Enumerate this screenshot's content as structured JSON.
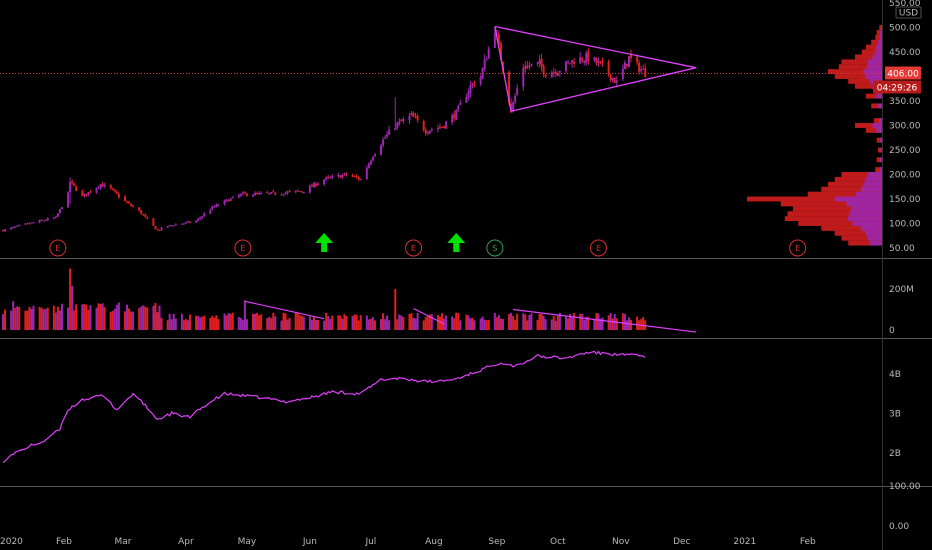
{
  "colors": {
    "background": "#000000",
    "up": "#9c27b0",
    "down": "#e0201f",
    "trendline": "#e040fb",
    "arrow": "#00e000",
    "earnings": "#d32f2f",
    "split": "#2e9e4e",
    "current_price": "#e53935",
    "pane_divider": "#555555"
  },
  "currency_label": "USD",
  "current_price_tag": "406.00",
  "countdown_tag": "04:29:26",
  "markers": {
    "earnings_label": "E",
    "split_label": "S",
    "earnings_dates": [
      "2020-01-29",
      "2020-04-29",
      "2020-07-22",
      "2020-10-21",
      "2021-01-27"
    ],
    "split_dates": [
      "2020-08-31"
    ],
    "up_arrow_dates": [
      "2020-06-08",
      "2020-08-12"
    ]
  },
  "chart_data": [
    {
      "type": "candlestick",
      "pane": "price",
      "ylim": [
        40,
        550
      ],
      "y_ticks": [
        50,
        100,
        150,
        200,
        250,
        300,
        350,
        400,
        450,
        500,
        550
      ],
      "y_tick_labels": [
        "50.00",
        "100.00",
        "150.00",
        "200.00",
        "250.00",
        "300.00",
        "350.00",
        "400.00",
        "450.00",
        "500.00",
        "550.00"
      ],
      "x_range": [
        "2020-01-01",
        "2021-02-28"
      ],
      "x_tick_labels": [
        "2020",
        "Feb",
        "Mar",
        "Apr",
        "May",
        "Jun",
        "Jul",
        "Aug",
        "Sep",
        "Oct",
        "Nov",
        "Dec",
        "2021",
        "Feb"
      ],
      "x_tick_dates": [
        "2020-01-01",
        "2020-02-01",
        "2020-03-01",
        "2020-04-01",
        "2020-05-01",
        "2020-06-01",
        "2020-07-01",
        "2020-08-01",
        "2020-09-01",
        "2020-10-01",
        "2020-11-01",
        "2020-12-01",
        "2021-01-01",
        "2021-02-01"
      ],
      "close_path": [
        [
          "2020-01-02",
          86
        ],
        [
          "2020-01-10",
          95
        ],
        [
          "2020-01-20",
          105
        ],
        [
          "2020-01-28",
          112
        ],
        [
          "2020-02-03",
          160
        ],
        [
          "2020-02-04",
          185
        ],
        [
          "2020-02-10",
          155
        ],
        [
          "2020-02-19",
          180
        ],
        [
          "2020-02-24",
          170
        ],
        [
          "2020-03-02",
          145
        ],
        [
          "2020-03-09",
          125
        ],
        [
          "2020-03-18",
          86
        ],
        [
          "2020-03-23",
          95
        ],
        [
          "2020-03-30",
          100
        ],
        [
          "2020-04-06",
          105
        ],
        [
          "2020-04-13",
          130
        ],
        [
          "2020-04-20",
          145
        ],
        [
          "2020-04-29",
          160
        ],
        [
          "2020-05-08",
          160
        ],
        [
          "2020-05-18",
          162
        ],
        [
          "2020-05-29",
          167
        ],
        [
          "2020-06-08",
          190
        ],
        [
          "2020-06-19",
          200
        ],
        [
          "2020-06-26",
          190
        ],
        [
          "2020-07-02",
          240
        ],
        [
          "2020-07-08",
          276
        ],
        [
          "2020-07-13",
          300
        ],
        [
          "2020-07-21",
          320
        ],
        [
          "2020-07-28",
          290
        ],
        [
          "2020-08-05",
          298
        ],
        [
          "2020-08-12",
          325
        ],
        [
          "2020-08-19",
          380
        ],
        [
          "2020-08-24",
          400
        ],
        [
          "2020-08-31",
          498
        ],
        [
          "2020-09-04",
          418
        ],
        [
          "2020-09-08",
          330
        ],
        [
          "2020-09-14",
          420
        ],
        [
          "2020-09-22",
          425
        ],
        [
          "2020-09-25",
          407
        ],
        [
          "2020-10-02",
          415
        ],
        [
          "2020-10-09",
          434
        ],
        [
          "2020-10-16",
          439
        ],
        [
          "2020-10-23",
          420
        ],
        [
          "2020-10-30",
          388
        ],
        [
          "2020-11-05",
          438
        ],
        [
          "2020-11-09",
          421
        ],
        [
          "2020-11-13",
          408
        ]
      ],
      "wick_extremes": {
        "2020-02-04": {
          "high": 194,
          "low": 140
        },
        "2020-07-13": {
          "high": 358,
          "low": 294
        },
        "2020-08-31": {
          "high": 502,
          "low": 470
        },
        "2020-09-08": {
          "high": 355,
          "low": 329
        }
      },
      "triangle_pattern": {
        "upper": [
          [
            "2020-08-31",
            502
          ],
          [
            "2020-12-08",
            418
          ]
        ],
        "lower": [
          [
            "2020-09-08",
            329
          ],
          [
            "2020-12-08",
            418
          ]
        ]
      },
      "volume_profile": [
        [
          60,
          0.25
        ],
        [
          70,
          0.3
        ],
        [
          80,
          0.35
        ],
        [
          90,
          0.45
        ],
        [
          100,
          0.62
        ],
        [
          110,
          0.72
        ],
        [
          120,
          0.7
        ],
        [
          130,
          0.66
        ],
        [
          140,
          0.75
        ],
        [
          150,
          1.0
        ],
        [
          160,
          0.55
        ],
        [
          170,
          0.45
        ],
        [
          180,
          0.4
        ],
        [
          190,
          0.35
        ],
        [
          200,
          0.3
        ],
        [
          210,
          0.05
        ],
        [
          230,
          0.04
        ],
        [
          250,
          0.03
        ],
        [
          270,
          0.04
        ],
        [
          290,
          0.12
        ],
        [
          300,
          0.2
        ],
        [
          310,
          0.06
        ],
        [
          340,
          0.08
        ],
        [
          360,
          0.12
        ],
        [
          380,
          0.2
        ],
        [
          390,
          0.25
        ],
        [
          400,
          0.35
        ],
        [
          410,
          0.4
        ],
        [
          420,
          0.32
        ],
        [
          430,
          0.3
        ],
        [
          440,
          0.2
        ],
        [
          450,
          0.15
        ],
        [
          460,
          0.12
        ],
        [
          470,
          0.08
        ],
        [
          480,
          0.05
        ],
        [
          490,
          0.04
        ],
        [
          500,
          0.02
        ]
      ]
    },
    {
      "type": "bar",
      "pane": "volume",
      "y_ticks": [
        0,
        200
      ],
      "y_tick_labels": [
        "0",
        "200M"
      ],
      "ylim": [
        0,
        300
      ],
      "peak_values": [
        [
          "2020-02-04",
          300
        ],
        [
          "2020-02-05",
          215
        ],
        [
          "2020-07-13",
          200
        ],
        [
          "2020-04-30",
          145
        ]
      ],
      "trendlines": [
        [
          [
            "2020-04-30",
            140
          ],
          [
            "2020-06-08",
            55
          ]
        ],
        [
          [
            "2020-07-22",
            105
          ],
          [
            "2020-08-06",
            30
          ]
        ],
        [
          [
            "2020-09-09",
            100
          ],
          [
            "2020-12-08",
            -10
          ]
        ]
      ]
    },
    {
      "type": "line",
      "pane": "indicator",
      "y_ticks": [
        2,
        3,
        4
      ],
      "y_tick_labels": [
        "2B",
        "3B",
        "4B"
      ],
      "ylim": [
        1.25,
        4.75
      ],
      "points": [
        [
          "2020-01-02",
          1.8
        ],
        [
          "2020-01-08",
          2.0
        ],
        [
          "2020-01-14",
          2.15
        ],
        [
          "2020-01-22",
          2.3
        ],
        [
          "2020-01-30",
          2.6
        ],
        [
          "2020-02-03",
          3.1
        ],
        [
          "2020-02-10",
          3.35
        ],
        [
          "2020-02-20",
          3.45
        ],
        [
          "2020-02-27",
          3.1
        ],
        [
          "2020-03-06",
          3.5
        ],
        [
          "2020-03-12",
          3.2
        ],
        [
          "2020-03-18",
          2.85
        ],
        [
          "2020-03-25",
          3.0
        ],
        [
          "2020-04-03",
          2.9
        ],
        [
          "2020-04-10",
          3.2
        ],
        [
          "2020-04-20",
          3.5
        ],
        [
          "2020-04-29",
          3.45
        ],
        [
          "2020-05-08",
          3.4
        ],
        [
          "2020-05-20",
          3.3
        ],
        [
          "2020-06-01",
          3.4
        ],
        [
          "2020-06-12",
          3.55
        ],
        [
          "2020-06-26",
          3.5
        ],
        [
          "2020-07-06",
          3.85
        ],
        [
          "2020-07-16",
          3.9
        ],
        [
          "2020-07-28",
          3.8
        ],
        [
          "2020-08-10",
          3.85
        ],
        [
          "2020-08-24",
          4.1
        ],
        [
          "2020-09-03",
          4.3
        ],
        [
          "2020-09-10",
          4.2
        ],
        [
          "2020-09-21",
          4.45
        ],
        [
          "2020-10-05",
          4.4
        ],
        [
          "2020-10-16",
          4.55
        ],
        [
          "2020-10-28",
          4.5
        ],
        [
          "2020-11-13",
          4.45
        ]
      ]
    },
    {
      "type": "line",
      "pane": "bottom",
      "y_ticks": [
        0,
        100
      ],
      "y_tick_labels": [
        "0.00",
        "100.00"
      ],
      "ylim": [
        -10,
        140
      ],
      "points": []
    }
  ]
}
